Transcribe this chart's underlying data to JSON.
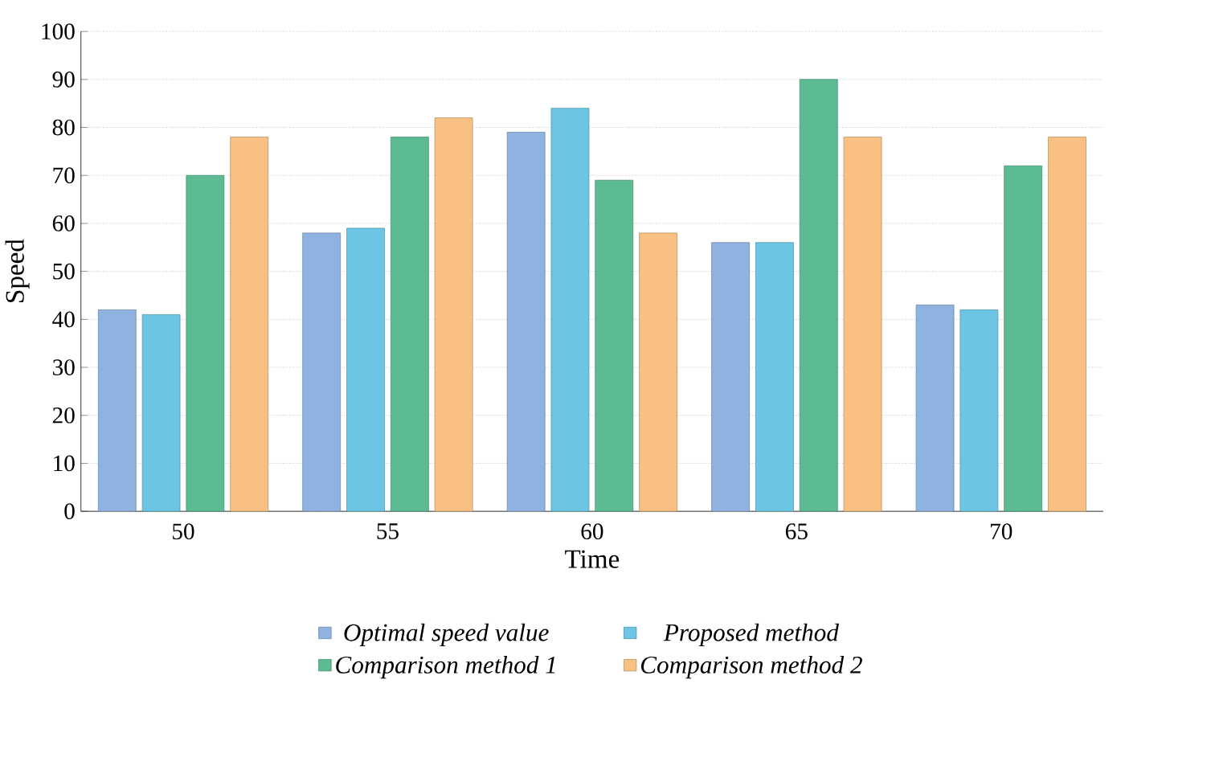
{
  "chart_data": {
    "type": "bar",
    "xlabel": "Time",
    "ylabel": "Speed",
    "categories": [
      "50",
      "55",
      "60",
      "65",
      "70"
    ],
    "series": [
      {
        "name": "Optimal speed value",
        "color": "#8fb3e0",
        "values": [
          42,
          58,
          79,
          56,
          43
        ]
      },
      {
        "name": "Proposed method",
        "color": "#6cc6e3",
        "values": [
          41,
          59,
          84,
          56,
          42
        ]
      },
      {
        "name": "Comparison method 1",
        "color": "#5dbb93",
        "values": [
          70,
          78,
          69,
          90,
          72
        ]
      },
      {
        "name": "Comparison method 2",
        "color": "#f8c183",
        "values": [
          78,
          82,
          58,
          78,
          78
        ]
      }
    ],
    "ylim": [
      0,
      100
    ],
    "yticks": [
      0,
      10,
      20,
      30,
      40,
      50,
      60,
      70,
      80,
      90,
      100
    ],
    "grid": "y",
    "legend": "bottom"
  }
}
